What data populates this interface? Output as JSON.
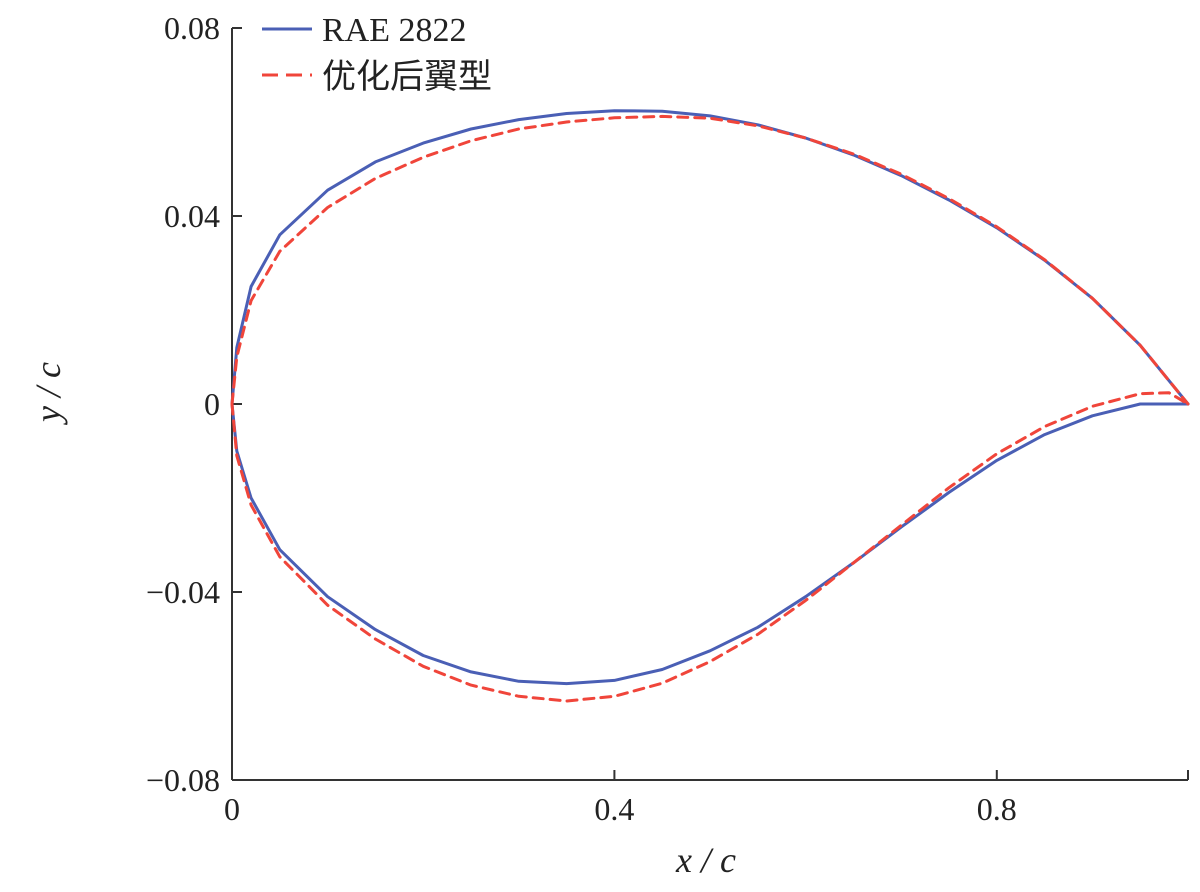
{
  "chart_data": {
    "type": "line",
    "xlabel": "x / c",
    "ylabel": "y / c",
    "xlim": [
      0,
      1
    ],
    "ylim": [
      -0.08,
      0.08
    ],
    "x_ticks": [
      0,
      0.4,
      0.8
    ],
    "x_tick_labels": [
      "0",
      "0.4",
      "0.8"
    ],
    "y_ticks": [
      0.08,
      0.04,
      0,
      -0.04,
      -0.08
    ],
    "y_tick_labels": [
      "0.08",
      "0.04",
      "0",
      "−0.04",
      "−0.08"
    ],
    "grid": false,
    "legend_position": "top-left",
    "series": [
      {
        "name": "RAE 2822",
        "color": "#4a5fb5",
        "style": "solid",
        "upper": {
          "x": [
            0,
            0.005,
            0.02,
            0.05,
            0.1,
            0.15,
            0.2,
            0.25,
            0.3,
            0.35,
            0.4,
            0.45,
            0.5,
            0.55,
            0.6,
            0.65,
            0.7,
            0.75,
            0.8,
            0.85,
            0.9,
            0.95,
            1.0
          ],
          "y": [
            0,
            0.012,
            0.025,
            0.036,
            0.0455,
            0.0515,
            0.0555,
            0.0585,
            0.0605,
            0.0618,
            0.0624,
            0.0623,
            0.0613,
            0.0594,
            0.0566,
            0.053,
            0.0486,
            0.0434,
            0.0375,
            0.0306,
            0.0225,
            0.0125,
            0
          ]
        },
        "lower": {
          "x": [
            0,
            0.005,
            0.02,
            0.05,
            0.1,
            0.15,
            0.2,
            0.25,
            0.3,
            0.35,
            0.4,
            0.45,
            0.5,
            0.55,
            0.6,
            0.65,
            0.7,
            0.75,
            0.8,
            0.85,
            0.9,
            0.95,
            0.98,
            1.0
          ],
          "y": [
            0,
            -0.01,
            -0.02,
            -0.031,
            -0.041,
            -0.048,
            -0.0535,
            -0.057,
            -0.059,
            -0.0595,
            -0.0588,
            -0.0565,
            -0.0525,
            -0.0475,
            -0.041,
            -0.0338,
            -0.0262,
            -0.0188,
            -0.012,
            -0.0065,
            -0.0025,
            0.0,
            0.0,
            0
          ]
        }
      },
      {
        "name": "优化后翼型",
        "color": "#f0453a",
        "style": "dashed",
        "upper": {
          "x": [
            0,
            0.005,
            0.02,
            0.05,
            0.1,
            0.15,
            0.2,
            0.25,
            0.3,
            0.35,
            0.4,
            0.45,
            0.5,
            0.55,
            0.6,
            0.65,
            0.7,
            0.75,
            0.8,
            0.85,
            0.9,
            0.95,
            1.0
          ],
          "y": [
            0,
            0.01,
            0.022,
            0.0325,
            0.0418,
            0.048,
            0.0525,
            0.056,
            0.0585,
            0.06,
            0.0609,
            0.0612,
            0.0608,
            0.0592,
            0.0566,
            0.0532,
            0.0489,
            0.0437,
            0.0377,
            0.0307,
            0.0225,
            0.0125,
            0
          ]
        },
        "lower": {
          "x": [
            0,
            0.005,
            0.02,
            0.05,
            0.1,
            0.15,
            0.2,
            0.25,
            0.3,
            0.35,
            0.4,
            0.45,
            0.5,
            0.55,
            0.6,
            0.65,
            0.7,
            0.75,
            0.8,
            0.85,
            0.9,
            0.95,
            0.98,
            1.0
          ],
          "y": [
            0,
            -0.011,
            -0.0215,
            -0.0325,
            -0.0428,
            -0.05,
            -0.0558,
            -0.0598,
            -0.0622,
            -0.0632,
            -0.0622,
            -0.0594,
            -0.0548,
            -0.049,
            -0.0418,
            -0.0338,
            -0.0258,
            -0.0178,
            -0.0106,
            -0.0048,
            -0.0005,
            0.0022,
            0.0024,
            0
          ]
        }
      }
    ]
  }
}
